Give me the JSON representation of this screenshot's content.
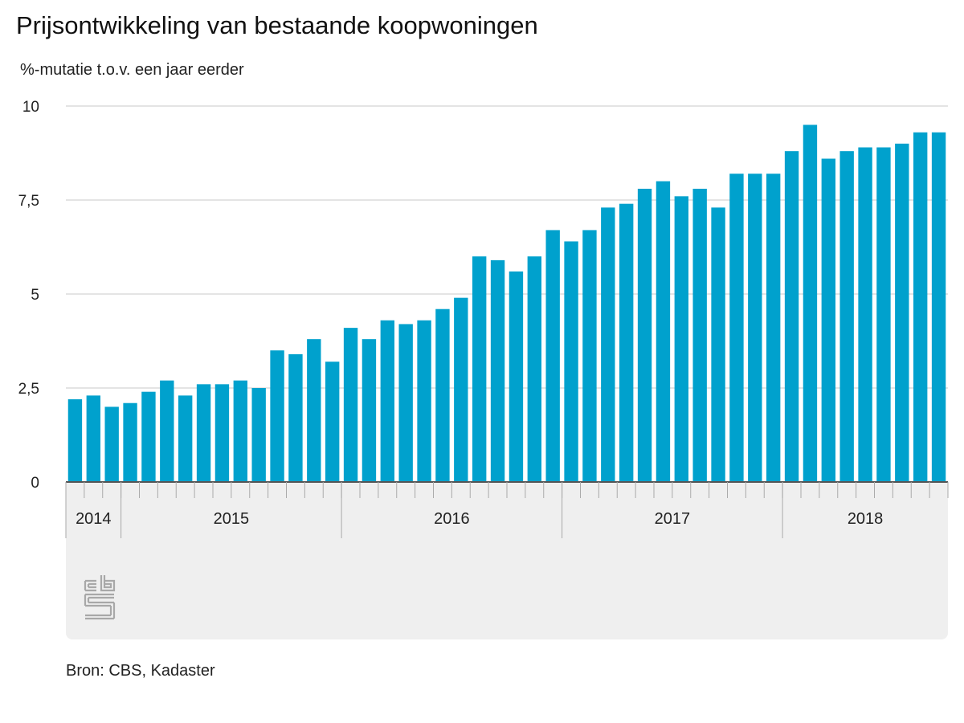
{
  "title": "Prijsontwikkeling van bestaande koopwoningen",
  "subtitle": "%-mutatie t.o.v. een jaar eerder",
  "source": "Bron: CBS, Kadaster",
  "logo_icon": "cbs-logo-icon",
  "colors": {
    "bar": "#00a1cd",
    "grid": "#c8c8c8",
    "axis": "#555555",
    "panel": "#efefef"
  },
  "chart_data": {
    "type": "bar",
    "categories": [
      "2014-10",
      "2014-11",
      "2014-12",
      "2015-01",
      "2015-02",
      "2015-03",
      "2015-04",
      "2015-05",
      "2015-06",
      "2015-07",
      "2015-08",
      "2015-09",
      "2015-10",
      "2015-11",
      "2015-12",
      "2016-01",
      "2016-02",
      "2016-03",
      "2016-04",
      "2016-05",
      "2016-06",
      "2016-07",
      "2016-08",
      "2016-09",
      "2016-10",
      "2016-11",
      "2016-12",
      "2017-01",
      "2017-02",
      "2017-03",
      "2017-04",
      "2017-05",
      "2017-06",
      "2017-07",
      "2017-08",
      "2017-09",
      "2017-10",
      "2017-11",
      "2017-12",
      "2018-01",
      "2018-02",
      "2018-03",
      "2018-04",
      "2018-05",
      "2018-06",
      "2018-07",
      "2018-08",
      "2018-09"
    ],
    "values": [
      2.2,
      2.3,
      2.0,
      2.1,
      2.4,
      2.7,
      2.3,
      2.6,
      2.6,
      2.7,
      2.5,
      3.5,
      3.4,
      3.8,
      3.2,
      4.1,
      3.8,
      4.3,
      4.2,
      4.3,
      4.6,
      4.9,
      6.0,
      5.9,
      5.6,
      6.0,
      6.7,
      6.4,
      6.7,
      7.3,
      7.4,
      7.8,
      8.0,
      7.6,
      7.8,
      7.3,
      8.2,
      8.2,
      8.2,
      8.8,
      9.5,
      8.6,
      8.8,
      8.9,
      8.9,
      9.0,
      9.3,
      9.3
    ],
    "ylim": [
      0,
      10
    ],
    "yticks": [
      0,
      2.5,
      5,
      7.5,
      10
    ],
    "ytick_labels": [
      "0",
      "2,5",
      "5",
      "7,5",
      "10"
    ],
    "year_groups": [
      {
        "label": "2014",
        "start": 0,
        "count": 3
      },
      {
        "label": "2015",
        "start": 3,
        "count": 12
      },
      {
        "label": "2016",
        "start": 15,
        "count": 12
      },
      {
        "label": "2017",
        "start": 27,
        "count": 12
      },
      {
        "label": "2018",
        "start": 39,
        "count": 9
      }
    ],
    "grid": true,
    "legend": "none",
    "xlabel": "",
    "ylabel": ""
  }
}
